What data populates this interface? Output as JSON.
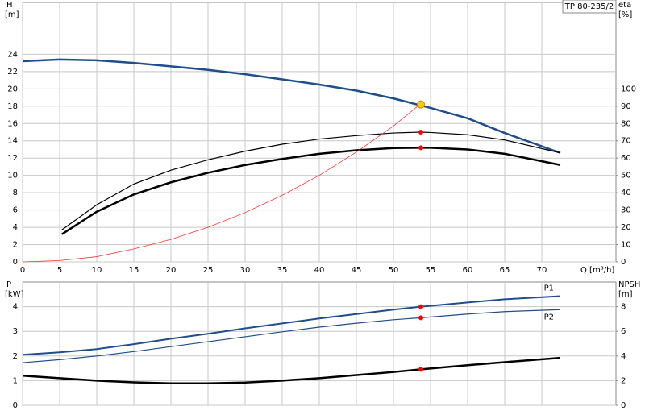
{
  "chart_data": [
    {
      "type": "line",
      "title": "TP 80-235/2",
      "ylabel": "H",
      "yunit": "[m]",
      "y2label": "eta",
      "y2unit": "[%]",
      "xlabel": "Q [m³/h]",
      "xlim": [
        0,
        80
      ],
      "xticks": [
        0,
        5,
        10,
        15,
        20,
        25,
        30,
        35,
        40,
        45,
        50,
        55,
        60,
        65,
        70
      ],
      "ylim": [
        0,
        30
      ],
      "yticks": [
        0,
        2,
        4,
        6,
        8,
        10,
        12,
        14,
        16,
        18,
        20,
        22,
        24
      ],
      "y2lim": [
        0,
        150
      ],
      "y2ticks": [
        0,
        10,
        20,
        30,
        40,
        50,
        60,
        70,
        80,
        90,
        100
      ],
      "grid": true,
      "series": [
        {
          "color": "#1f4e8c",
          "width": 2.5,
          "x": [
            0,
            5,
            10,
            15,
            20,
            25,
            30,
            35,
            40,
            45,
            50,
            55,
            60,
            65,
            72.5
          ],
          "values": [
            23.2,
            23.4,
            23.3,
            23.0,
            22.6,
            22.2,
            21.7,
            21.1,
            20.5,
            19.8,
            18.9,
            17.8,
            16.6,
            14.9,
            12.6
          ]
        },
        {
          "color": "#000000",
          "width": 1.2,
          "axis": "y2",
          "x": [
            5.3,
            10,
            15,
            20,
            25,
            30,
            35,
            40,
            45,
            50,
            53.7,
            55,
            60,
            65,
            72.5
          ],
          "values": [
            18.5,
            33,
            45,
            53,
            59,
            64,
            68,
            71,
            73,
            74.5,
            75,
            74.8,
            73.5,
            70.5,
            63
          ]
        },
        {
          "color": "#000000",
          "width": 2.5,
          "axis": "y2",
          "x": [
            5.3,
            10,
            15,
            20,
            25,
            30,
            35,
            40,
            45,
            50,
            53.7,
            55,
            60,
            65,
            72.5
          ],
          "values": [
            16,
            29,
            39,
            46,
            51.5,
            56,
            59.5,
            62.5,
            64.5,
            65.8,
            66,
            66,
            65,
            62.5,
            56
          ]
        },
        {
          "color": "#ff3030",
          "width": 0.8,
          "x": [
            0,
            5,
            10,
            15,
            20,
            25,
            30,
            35,
            40,
            45,
            50,
            53.7
          ],
          "values": [
            0,
            0.15,
            0.6,
            1.5,
            2.6,
            4.0,
            5.7,
            7.7,
            10.0,
            12.7,
            15.7,
            18.3
          ]
        }
      ],
      "points": [
        {
          "x": 53.7,
          "value": 18.2,
          "color": "#ffcc00"
        },
        {
          "x": 53.7,
          "value": 75,
          "axis": "y2",
          "color": "#ff0000"
        },
        {
          "x": 53.7,
          "value": 66,
          "axis": "y2",
          "color": "#ff0000"
        }
      ]
    },
    {
      "type": "line",
      "ylabel": "P",
      "yunit": "[kW]",
      "y2label": "NPSH",
      "y2unit": "[m]",
      "xlim": [
        0,
        80
      ],
      "xticks": [
        0,
        5,
        10,
        15,
        20,
        25,
        30,
        35,
        40,
        45,
        50,
        55,
        60,
        65,
        70
      ],
      "ylim": [
        0,
        5
      ],
      "yticks": [
        0,
        1,
        2,
        3,
        4
      ],
      "y2lim": [
        0,
        10
      ],
      "y2ticks": [
        0,
        2,
        4,
        6,
        8
      ],
      "grid": true,
      "series": [
        {
          "name": "P1",
          "color": "#1f4e8c",
          "width": 2,
          "x": [
            0,
            5,
            10,
            15,
            20,
            25,
            30,
            35,
            40,
            45,
            50,
            53.7,
            60,
            65,
            72.5
          ],
          "values": [
            2.05,
            2.15,
            2.28,
            2.48,
            2.7,
            2.9,
            3.12,
            3.32,
            3.52,
            3.7,
            3.88,
            4.0,
            4.17,
            4.3,
            4.43
          ]
        },
        {
          "name": "P2",
          "color": "#1f4e8c",
          "width": 1.2,
          "x": [
            0,
            5,
            10,
            15,
            20,
            25,
            30,
            35,
            40,
            45,
            50,
            53.7,
            60,
            65,
            72.5
          ],
          "values": [
            1.73,
            1.85,
            2.0,
            2.18,
            2.38,
            2.58,
            2.78,
            2.98,
            3.17,
            3.33,
            3.47,
            3.55,
            3.7,
            3.8,
            3.88
          ]
        },
        {
          "color": "#000000",
          "width": 2.5,
          "axis": "y2",
          "x": [
            0,
            5,
            10,
            15,
            20,
            25,
            30,
            35,
            40,
            45,
            50,
            53.7,
            60,
            65,
            72.5
          ],
          "values": [
            2.4,
            2.2,
            2.0,
            1.86,
            1.78,
            1.78,
            1.85,
            2.0,
            2.2,
            2.45,
            2.7,
            2.92,
            3.25,
            3.5,
            3.85
          ]
        }
      ],
      "points": [
        {
          "x": 53.7,
          "value": 4.0,
          "color": "#ff0000"
        },
        {
          "x": 53.7,
          "value": 3.55,
          "color": "#ff0000"
        },
        {
          "x": 53.7,
          "value": 2.92,
          "axis": "y2",
          "color": "#ff0000"
        }
      ]
    }
  ]
}
